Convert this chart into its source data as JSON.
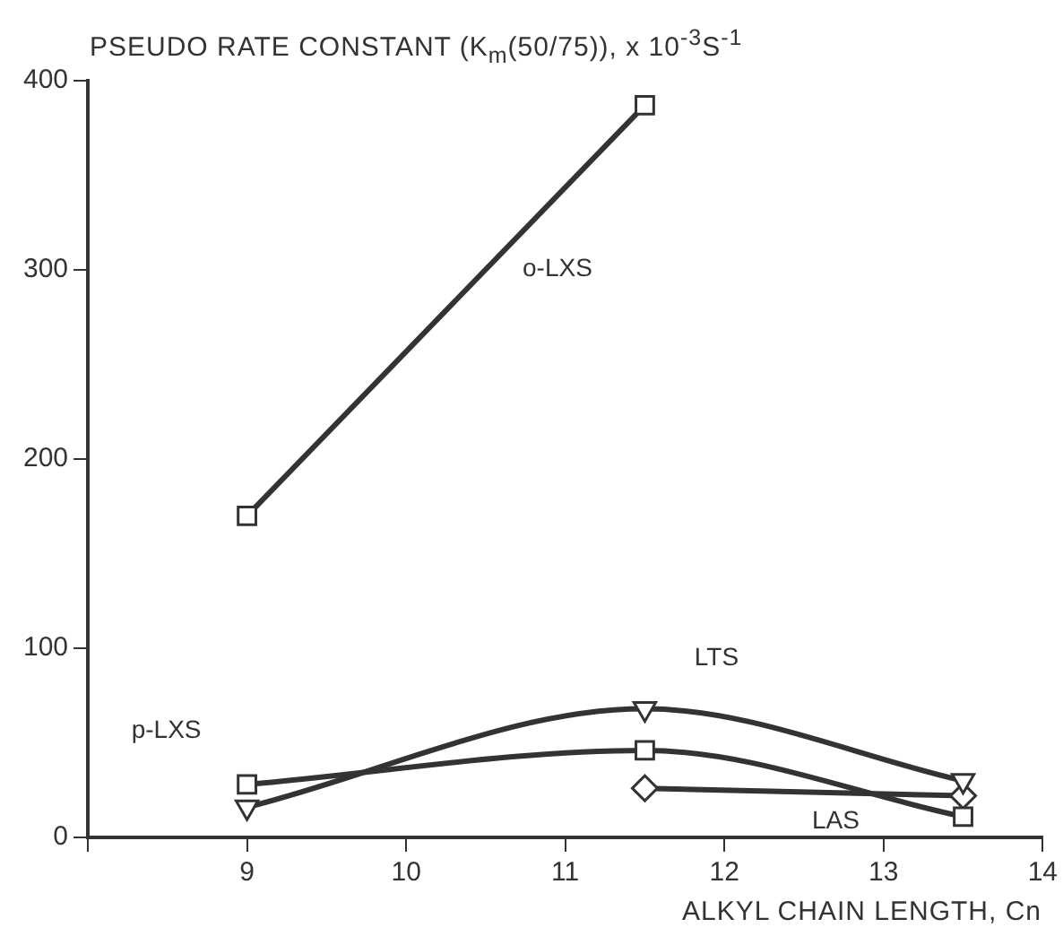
{
  "chart_data": {
    "type": "line",
    "ylabel": "PSEUDO RATE CONSTANT (K$_{m}$(50/75)), x 10$^{-3}$S$^{-1}$",
    "xlabel": "ALKYL CHAIN LENGTH, Cn",
    "xlim": [
      8,
      14
    ],
    "xticks": [
      {
        "value": 8,
        "label": null
      },
      9,
      10,
      11,
      12,
      13,
      14
    ],
    "ylim": [
      0,
      400
    ],
    "yticks": [
      0,
      100,
      200,
      300,
      400
    ],
    "grid": false,
    "legend": false,
    "series": [
      {
        "name": "o-LXS",
        "color": "#333333",
        "marker": "square",
        "x": [
          9,
          11.5
        ],
        "values": [
          170,
          387
        ]
      },
      {
        "name": "p-LXS",
        "color": "#333333",
        "marker": "square",
        "x": [
          9,
          11.5,
          13.5
        ],
        "values": [
          28,
          46,
          11
        ]
      },
      {
        "name": "LTS",
        "color": "#333333",
        "marker": "triangle",
        "x": [
          9,
          11.5,
          13.5
        ],
        "values": [
          16,
          68,
          30
        ]
      },
      {
        "name": "LAS",
        "color": "#333333",
        "marker": "diamond",
        "x": [
          11.5,
          13.5
        ],
        "values": [
          26,
          22
        ]
      }
    ]
  }
}
